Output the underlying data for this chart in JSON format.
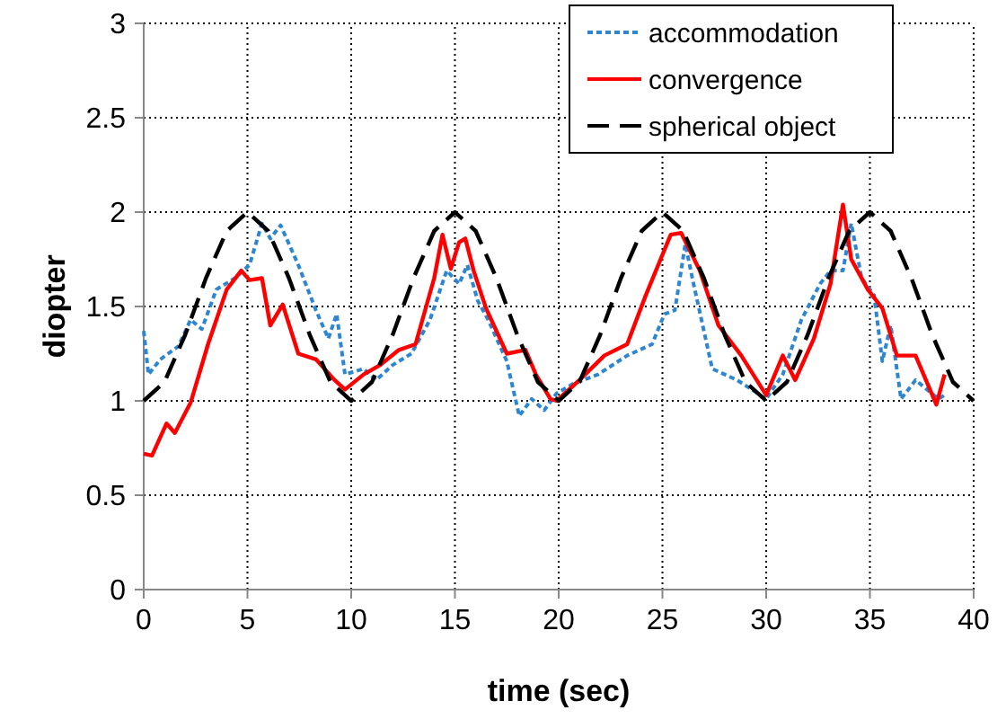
{
  "chart_data": {
    "type": "line",
    "xlabel": "time (sec)",
    "ylabel": "diopter",
    "xlim": [
      0,
      40
    ],
    "ylim": [
      0,
      3
    ],
    "xticks": [
      0,
      5,
      10,
      15,
      20,
      25,
      30,
      35,
      40
    ],
    "yticks": [
      0,
      0.5,
      1,
      1.5,
      2,
      2.5,
      3
    ],
    "grid": true,
    "legend": "top right",
    "marker": "none",
    "series": [
      {
        "name": "accommodation",
        "color": "#2e86d0",
        "line_style": "dotted",
        "x": [
          0,
          0.23,
          0.8,
          1.68,
          2.26,
          2.8,
          3.5,
          4.4,
          5.1,
          5.7,
          6.1,
          6.6,
          7.45,
          8.3,
          8.9,
          9.3,
          9.7,
          10.6,
          11.2,
          12,
          12.9,
          13.8,
          14.6,
          15.2,
          15.6,
          16.1,
          16.6,
          17.5,
          18.1,
          18.7,
          19.3,
          19.9,
          20.7,
          21.9,
          23.3,
          24.5,
          25.1,
          25.6,
          26.1,
          26.5,
          27.4,
          28.6,
          30,
          30.8,
          31.7,
          32.6,
          33.1,
          33.7,
          34.1,
          34.6,
          35.2,
          35.6,
          36,
          36.5,
          37.2,
          38.3,
          38.6
        ],
        "values": [
          1.37,
          1.14,
          1.22,
          1.29,
          1.43,
          1.38,
          1.59,
          1.65,
          1.72,
          1.94,
          1.86,
          1.93,
          1.72,
          1.48,
          1.33,
          1.46,
          1.14,
          1.17,
          1.11,
          1.19,
          1.25,
          1.43,
          1.69,
          1.62,
          1.72,
          1.53,
          1.43,
          1.21,
          0.92,
          1.01,
          0.95,
          1.04,
          1.09,
          1.14,
          1.24,
          1.3,
          1.46,
          1.48,
          1.83,
          1.62,
          1.17,
          1.11,
          1.01,
          1.14,
          1.43,
          1.62,
          1.69,
          1.69,
          1.94,
          1.65,
          1.56,
          1.21,
          1.4,
          1.01,
          1.11,
          1.01,
          1.03
        ]
      },
      {
        "name": "convergence",
        "color": "#ff0000",
        "line_style": "solid",
        "x": [
          0,
          0.4,
          1.1,
          1.5,
          2.26,
          3.1,
          4,
          4.7,
          5.1,
          5.7,
          6.1,
          6.7,
          7.45,
          8.3,
          9.2,
          9.7,
          10.6,
          11.4,
          12.3,
          13.1,
          14,
          14.4,
          14.8,
          15.2,
          15.5,
          15.9,
          16.5,
          17.5,
          18.4,
          18.9,
          19.6,
          19.9,
          21,
          22.2,
          23.3,
          24.2,
          25.4,
          25.9,
          26.8,
          27.7,
          28.8,
          30,
          30.8,
          31.4,
          32.3,
          33.1,
          33.7,
          34.1,
          34.9,
          35.6,
          36.3,
          37.2,
          38.2,
          38.6
        ],
        "values": [
          0.72,
          0.71,
          0.88,
          0.83,
          0.99,
          1.3,
          1.59,
          1.69,
          1.64,
          1.65,
          1.4,
          1.51,
          1.25,
          1.22,
          1.11,
          1.06,
          1.14,
          1.19,
          1.27,
          1.3,
          1.65,
          1.88,
          1.7,
          1.84,
          1.86,
          1.69,
          1.49,
          1.25,
          1.27,
          1.14,
          1.01,
          1,
          1.11,
          1.24,
          1.3,
          1.56,
          1.88,
          1.89,
          1.69,
          1.4,
          1.24,
          1.03,
          1.24,
          1.11,
          1.33,
          1.62,
          2.04,
          1.75,
          1.59,
          1.49,
          1.24,
          1.24,
          0.98,
          1.14
        ]
      },
      {
        "name": "spherical object",
        "color": "#000000",
        "line_style": "dashed",
        "x": [
          0,
          1,
          2,
          3,
          4,
          5,
          6,
          7,
          8,
          9,
          10,
          11,
          12,
          13,
          14,
          15,
          16,
          17,
          18,
          19,
          20,
          21,
          22,
          23,
          24,
          25,
          26,
          27,
          28,
          29,
          30,
          31,
          32,
          33,
          34,
          35,
          36,
          37,
          38,
          39,
          40
        ],
        "values": [
          1,
          1.1,
          1.35,
          1.65,
          1.9,
          2,
          1.9,
          1.65,
          1.35,
          1.1,
          1,
          1.1,
          1.35,
          1.65,
          1.9,
          2,
          1.9,
          1.65,
          1.35,
          1.1,
          1,
          1.1,
          1.35,
          1.65,
          1.9,
          2,
          1.9,
          1.65,
          1.35,
          1.1,
          1,
          1.1,
          1.35,
          1.65,
          1.9,
          2,
          1.9,
          1.65,
          1.35,
          1.1,
          1
        ]
      }
    ]
  }
}
